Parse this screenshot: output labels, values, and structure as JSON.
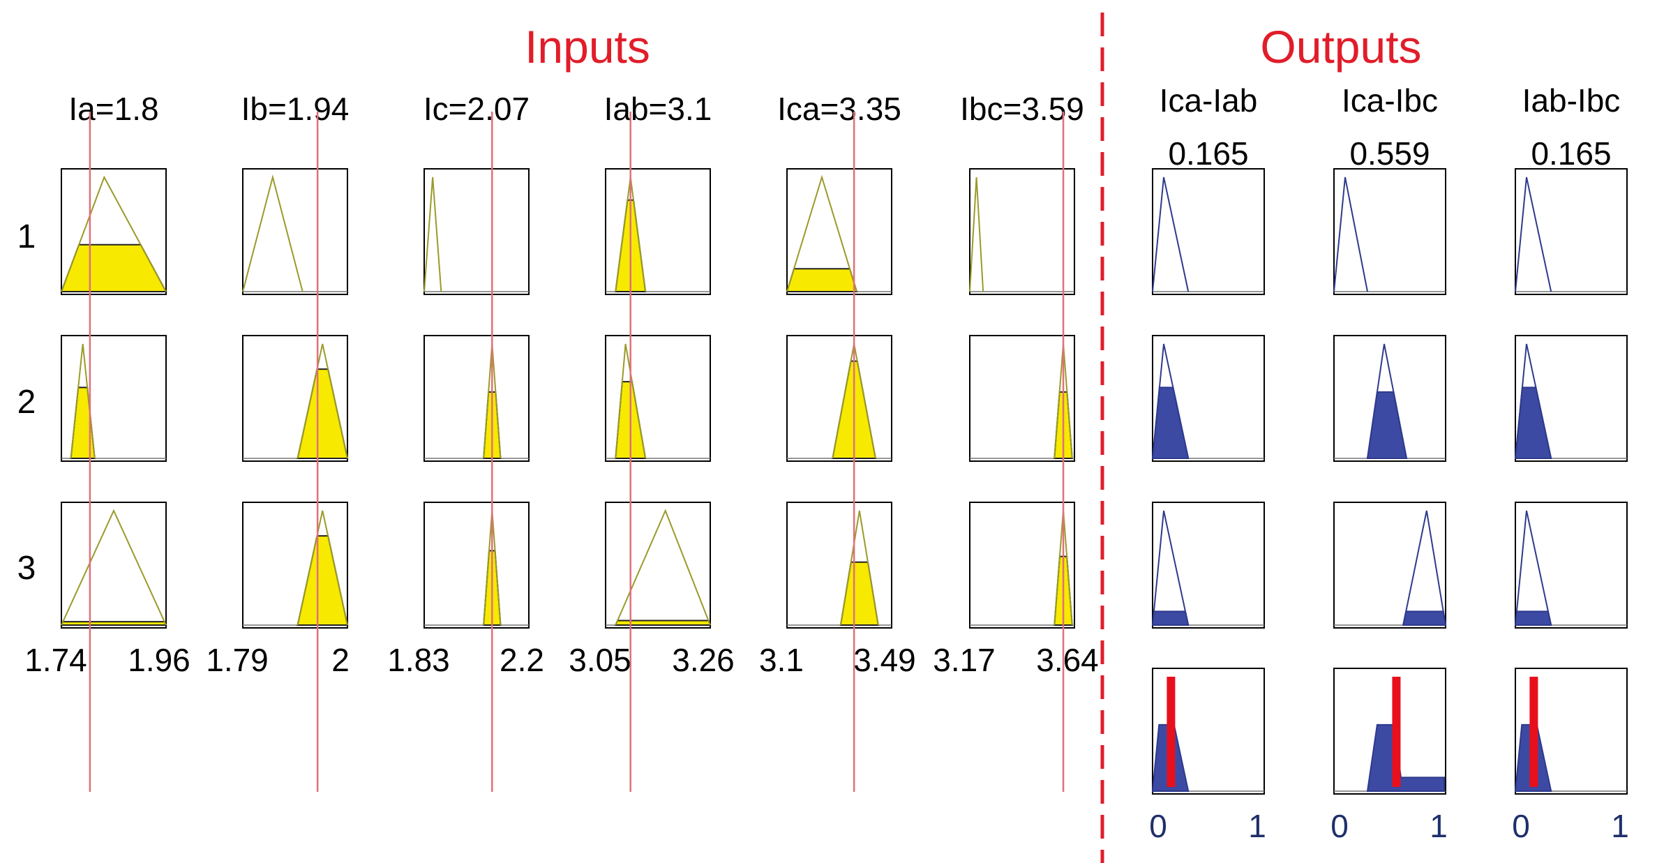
{
  "headers": {
    "inputs": "Inputs",
    "outputs": "Outputs"
  },
  "colors": {
    "header": "#e11d2a",
    "input_fill": "#f7ea00",
    "input_outline": "#9a9a2a",
    "output_fill": "#3d4aa3",
    "output_outline": "#2e3a8c",
    "cursor": "#e0707a",
    "defuzz": "#e8101c",
    "axis_text": "#1f2f6b"
  },
  "rule_labels": [
    "1",
    "2",
    "3"
  ],
  "inputs": [
    {
      "label": "Ia=1.8",
      "range_labels": [
        "1.74",
        "1.96"
      ],
      "min": 1.74,
      "max": 1.96,
      "value": 1.8,
      "mfs": [
        {
          "a": 1.74,
          "b": 1.83,
          "c": 1.96,
          "fire": 0.41
        },
        {
          "a": 1.76,
          "b": 1.785,
          "c": 1.81,
          "fire": 0.62
        },
        {
          "a": 1.74,
          "b": 1.85,
          "c": 1.96,
          "fire": 0.03
        }
      ]
    },
    {
      "label": "Ib=1.94",
      "range_labels": [
        "1.79",
        "2"
      ],
      "min": 1.79,
      "max": 2.0,
      "value": 1.94,
      "mfs": [
        {
          "a": 1.79,
          "b": 1.85,
          "c": 1.91,
          "fire": 0
        },
        {
          "a": 1.9,
          "b": 1.95,
          "c": 2.0,
          "fire": 0.78
        },
        {
          "a": 1.9,
          "b": 1.95,
          "c": 2.0,
          "fire": 0.78
        }
      ]
    },
    {
      "label": "Ic=2.07",
      "range_labels": [
        "1.83",
        "2.2"
      ],
      "min": 1.83,
      "max": 2.2,
      "value": 2.07,
      "mfs": [
        {
          "a": 1.83,
          "b": 1.86,
          "c": 1.89,
          "fire": 0
        },
        {
          "a": 2.04,
          "b": 2.07,
          "c": 2.1,
          "fire": 0.58
        },
        {
          "a": 2.04,
          "b": 2.07,
          "c": 2.1,
          "fire": 0.65
        }
      ]
    },
    {
      "label": "Iab=3.1",
      "range_labels": [
        "3.05",
        "3.26"
      ],
      "min": 3.05,
      "max": 3.26,
      "value": 3.1,
      "mfs": [
        {
          "a": 3.07,
          "b": 3.1,
          "c": 3.13,
          "fire": 0.8
        },
        {
          "a": 3.07,
          "b": 3.09,
          "c": 3.13,
          "fire": 0.67
        },
        {
          "a": 3.07,
          "b": 3.17,
          "c": 3.26,
          "fire": 0.04
        }
      ]
    },
    {
      "label": "Ica=3.35",
      "range_labels": [
        "3.1",
        "3.49"
      ],
      "min": 3.1,
      "max": 3.49,
      "value": 3.35,
      "mfs": [
        {
          "a": 3.1,
          "b": 3.23,
          "c": 3.36,
          "fire": 0.2
        },
        {
          "a": 3.27,
          "b": 3.35,
          "c": 3.43,
          "fire": 0.85
        },
        {
          "a": 3.3,
          "b": 3.37,
          "c": 3.44,
          "fire": 0.55
        }
      ]
    },
    {
      "label": "Ibc=3.59",
      "range_labels": [
        "3.17",
        "3.64"
      ],
      "min": 3.17,
      "max": 3.64,
      "value": 3.59,
      "mfs": [
        {
          "a": 3.17,
          "b": 3.2,
          "c": 3.23,
          "fire": 0
        },
        {
          "a": 3.55,
          "b": 3.59,
          "c": 3.63,
          "fire": 0.58
        },
        {
          "a": 3.55,
          "b": 3.59,
          "c": 3.63,
          "fire": 0.6
        }
      ]
    }
  ],
  "outputs": [
    {
      "name": "Ica-Iab",
      "value_label": "0.165",
      "value": 0.165,
      "range_labels": [
        "0",
        "1"
      ],
      "mfs": [
        {
          "a": 0.0,
          "b": 0.1,
          "c": 0.32,
          "fire": 0
        },
        {
          "a": 0.0,
          "b": 0.1,
          "c": 0.32,
          "fire": 0.62
        },
        {
          "a": 0.0,
          "b": 0.1,
          "c": 0.32,
          "fire": 0.12
        }
      ],
      "aggregate": {
        "peak": 0.58,
        "tail_fire": 0
      }
    },
    {
      "name": "Ica-Ibc",
      "value_label": "0.559",
      "value": 0.559,
      "range_labels": [
        "0",
        "1"
      ],
      "mfs": [
        {
          "a": 0.0,
          "b": 0.1,
          "c": 0.3,
          "fire": 0
        },
        {
          "a": 0.3,
          "b": 0.45,
          "c": 0.65,
          "fire": 0.58
        },
        {
          "a": 0.62,
          "b": 0.83,
          "c": 1.0,
          "fire": 0.12
        }
      ],
      "aggregate": {
        "peak": 0.58,
        "tail_fire": 0.12
      }
    },
    {
      "name": "Iab-Ibc",
      "value_label": "0.165",
      "value": 0.165,
      "range_labels": [
        "0",
        "1"
      ],
      "mfs": [
        {
          "a": 0.0,
          "b": 0.1,
          "c": 0.32,
          "fire": 0
        },
        {
          "a": 0.0,
          "b": 0.1,
          "c": 0.32,
          "fire": 0.62
        },
        {
          "a": 0.0,
          "b": 0.1,
          "c": 0.32,
          "fire": 0.12
        }
      ],
      "aggregate": {
        "peak": 0.58,
        "tail_fire": 0
      }
    }
  ]
}
